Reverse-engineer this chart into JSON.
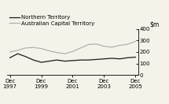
{
  "title": "",
  "ylim": [
    0,
    400
  ],
  "yticks": [
    0,
    100,
    200,
    300,
    400
  ],
  "x_labels": [
    "Dec\n1997",
    "Dec\n1999",
    "Dec\n2001",
    "Dec\n2003",
    "Dec\n2005"
  ],
  "x_positions": [
    0,
    2,
    4,
    6,
    8
  ],
  "nt_color": "#1a1a1a",
  "act_color": "#b0b0b0",
  "bg_color": "#f5f2ea",
  "legend_nt": "Northern Territory",
  "legend_act": "Australian Capital Territory",
  "nt_values": [
    150,
    185,
    160,
    130,
    110,
    120,
    130,
    120,
    125,
    130,
    130,
    135,
    140,
    145,
    140,
    150,
    155
  ],
  "act_values": [
    200,
    215,
    235,
    240,
    230,
    210,
    195,
    185,
    205,
    235,
    265,
    270,
    250,
    242,
    258,
    268,
    292
  ],
  "x_vals": [
    0,
    0.5,
    1,
    1.5,
    2,
    2.5,
    3,
    3.5,
    4,
    4.5,
    5,
    5.5,
    6,
    6.5,
    7,
    7.5,
    8
  ]
}
